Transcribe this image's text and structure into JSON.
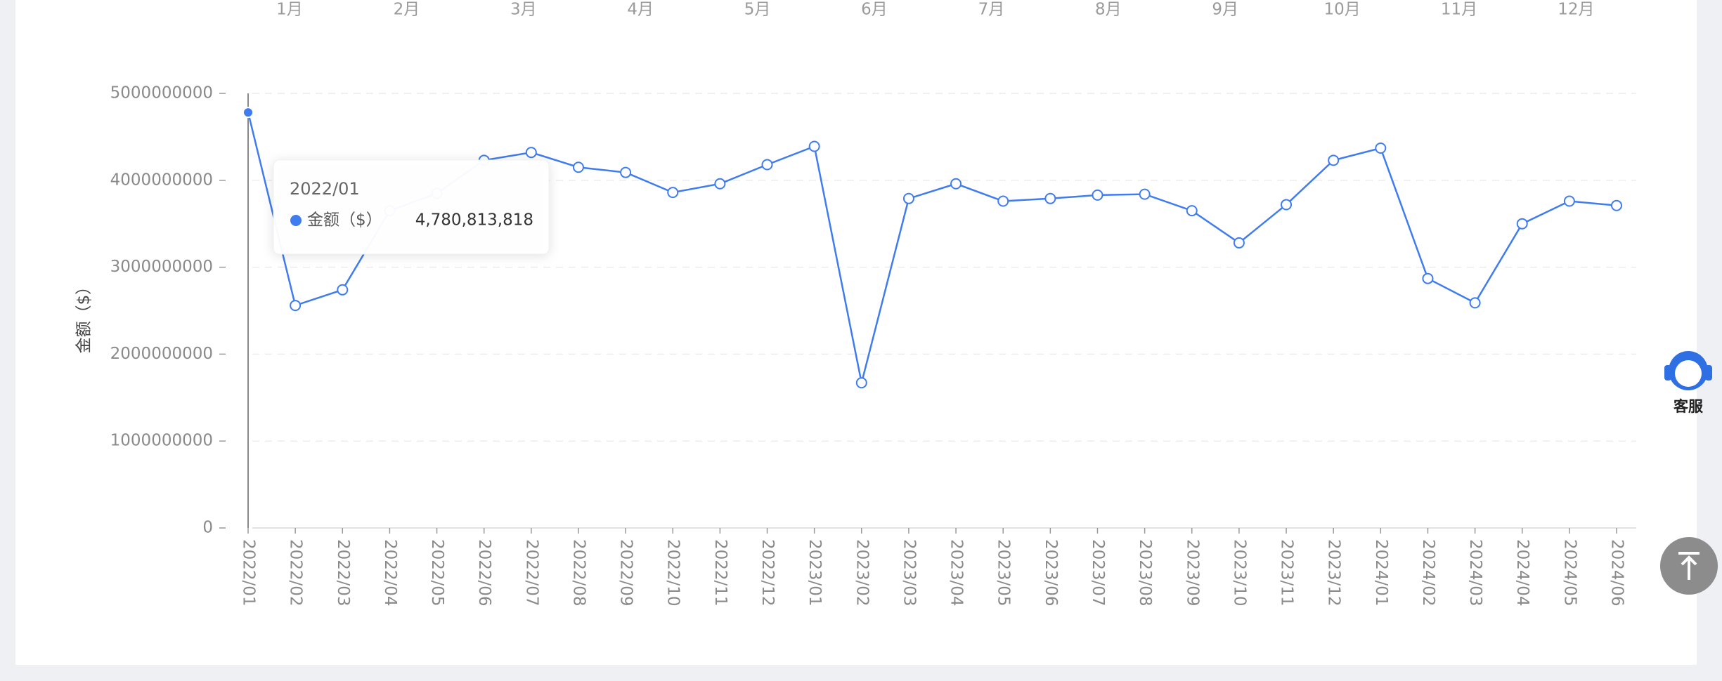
{
  "chart_data": {
    "type": "line",
    "top_labels": [
      "1月",
      "2月",
      "3月",
      "4月",
      "5月",
      "6月",
      "7月",
      "8月",
      "9月",
      "10月",
      "11月",
      "12月"
    ],
    "y_label": "金额（$）",
    "categories": [
      "2022/01",
      "2022/02",
      "2022/03",
      "2022/04",
      "2022/05",
      "2022/06",
      "2022/07",
      "2022/08",
      "2022/09",
      "2022/10",
      "2022/11",
      "2022/12",
      "2023/01",
      "2023/02",
      "2023/03",
      "2023/04",
      "2023/05",
      "2023/06",
      "2023/07",
      "2023/08",
      "2023/09",
      "2023/10",
      "2023/11",
      "2023/12",
      "2024/01",
      "2024/02",
      "2024/03",
      "2024/04",
      "2024/05",
      "2024/06"
    ],
    "series": [
      {
        "name": "金额（$）",
        "color": "#3f7cf0",
        "values": [
          4780813818,
          2560000000,
          2740000000,
          3650000000,
          3850000000,
          4230000000,
          4320000000,
          4150000000,
          4090000000,
          3860000000,
          3960000000,
          4180000000,
          4390000000,
          1670000000,
          3790000000,
          3960000000,
          3760000000,
          3790000000,
          3830000000,
          3840000000,
          3650000000,
          3280000000,
          3720000000,
          4230000000,
          4370000000,
          2870000000,
          2590000000,
          3500000000,
          3760000000,
          3710000000
        ],
        "value_labels": [
          "4,780,813,818",
          null,
          null,
          null,
          null,
          null,
          null,
          null,
          null,
          null,
          null,
          null,
          null,
          null,
          null,
          null,
          null,
          null,
          null,
          null,
          null,
          null,
          null,
          null,
          null,
          null,
          null,
          null,
          null,
          null
        ]
      }
    ],
    "ylim": [
      0,
      5000000000
    ],
    "yticks": [
      0,
      1000000000,
      2000000000,
      3000000000,
      4000000000,
      5000000000
    ],
    "grid": true
  },
  "side": {
    "service": "客服"
  }
}
